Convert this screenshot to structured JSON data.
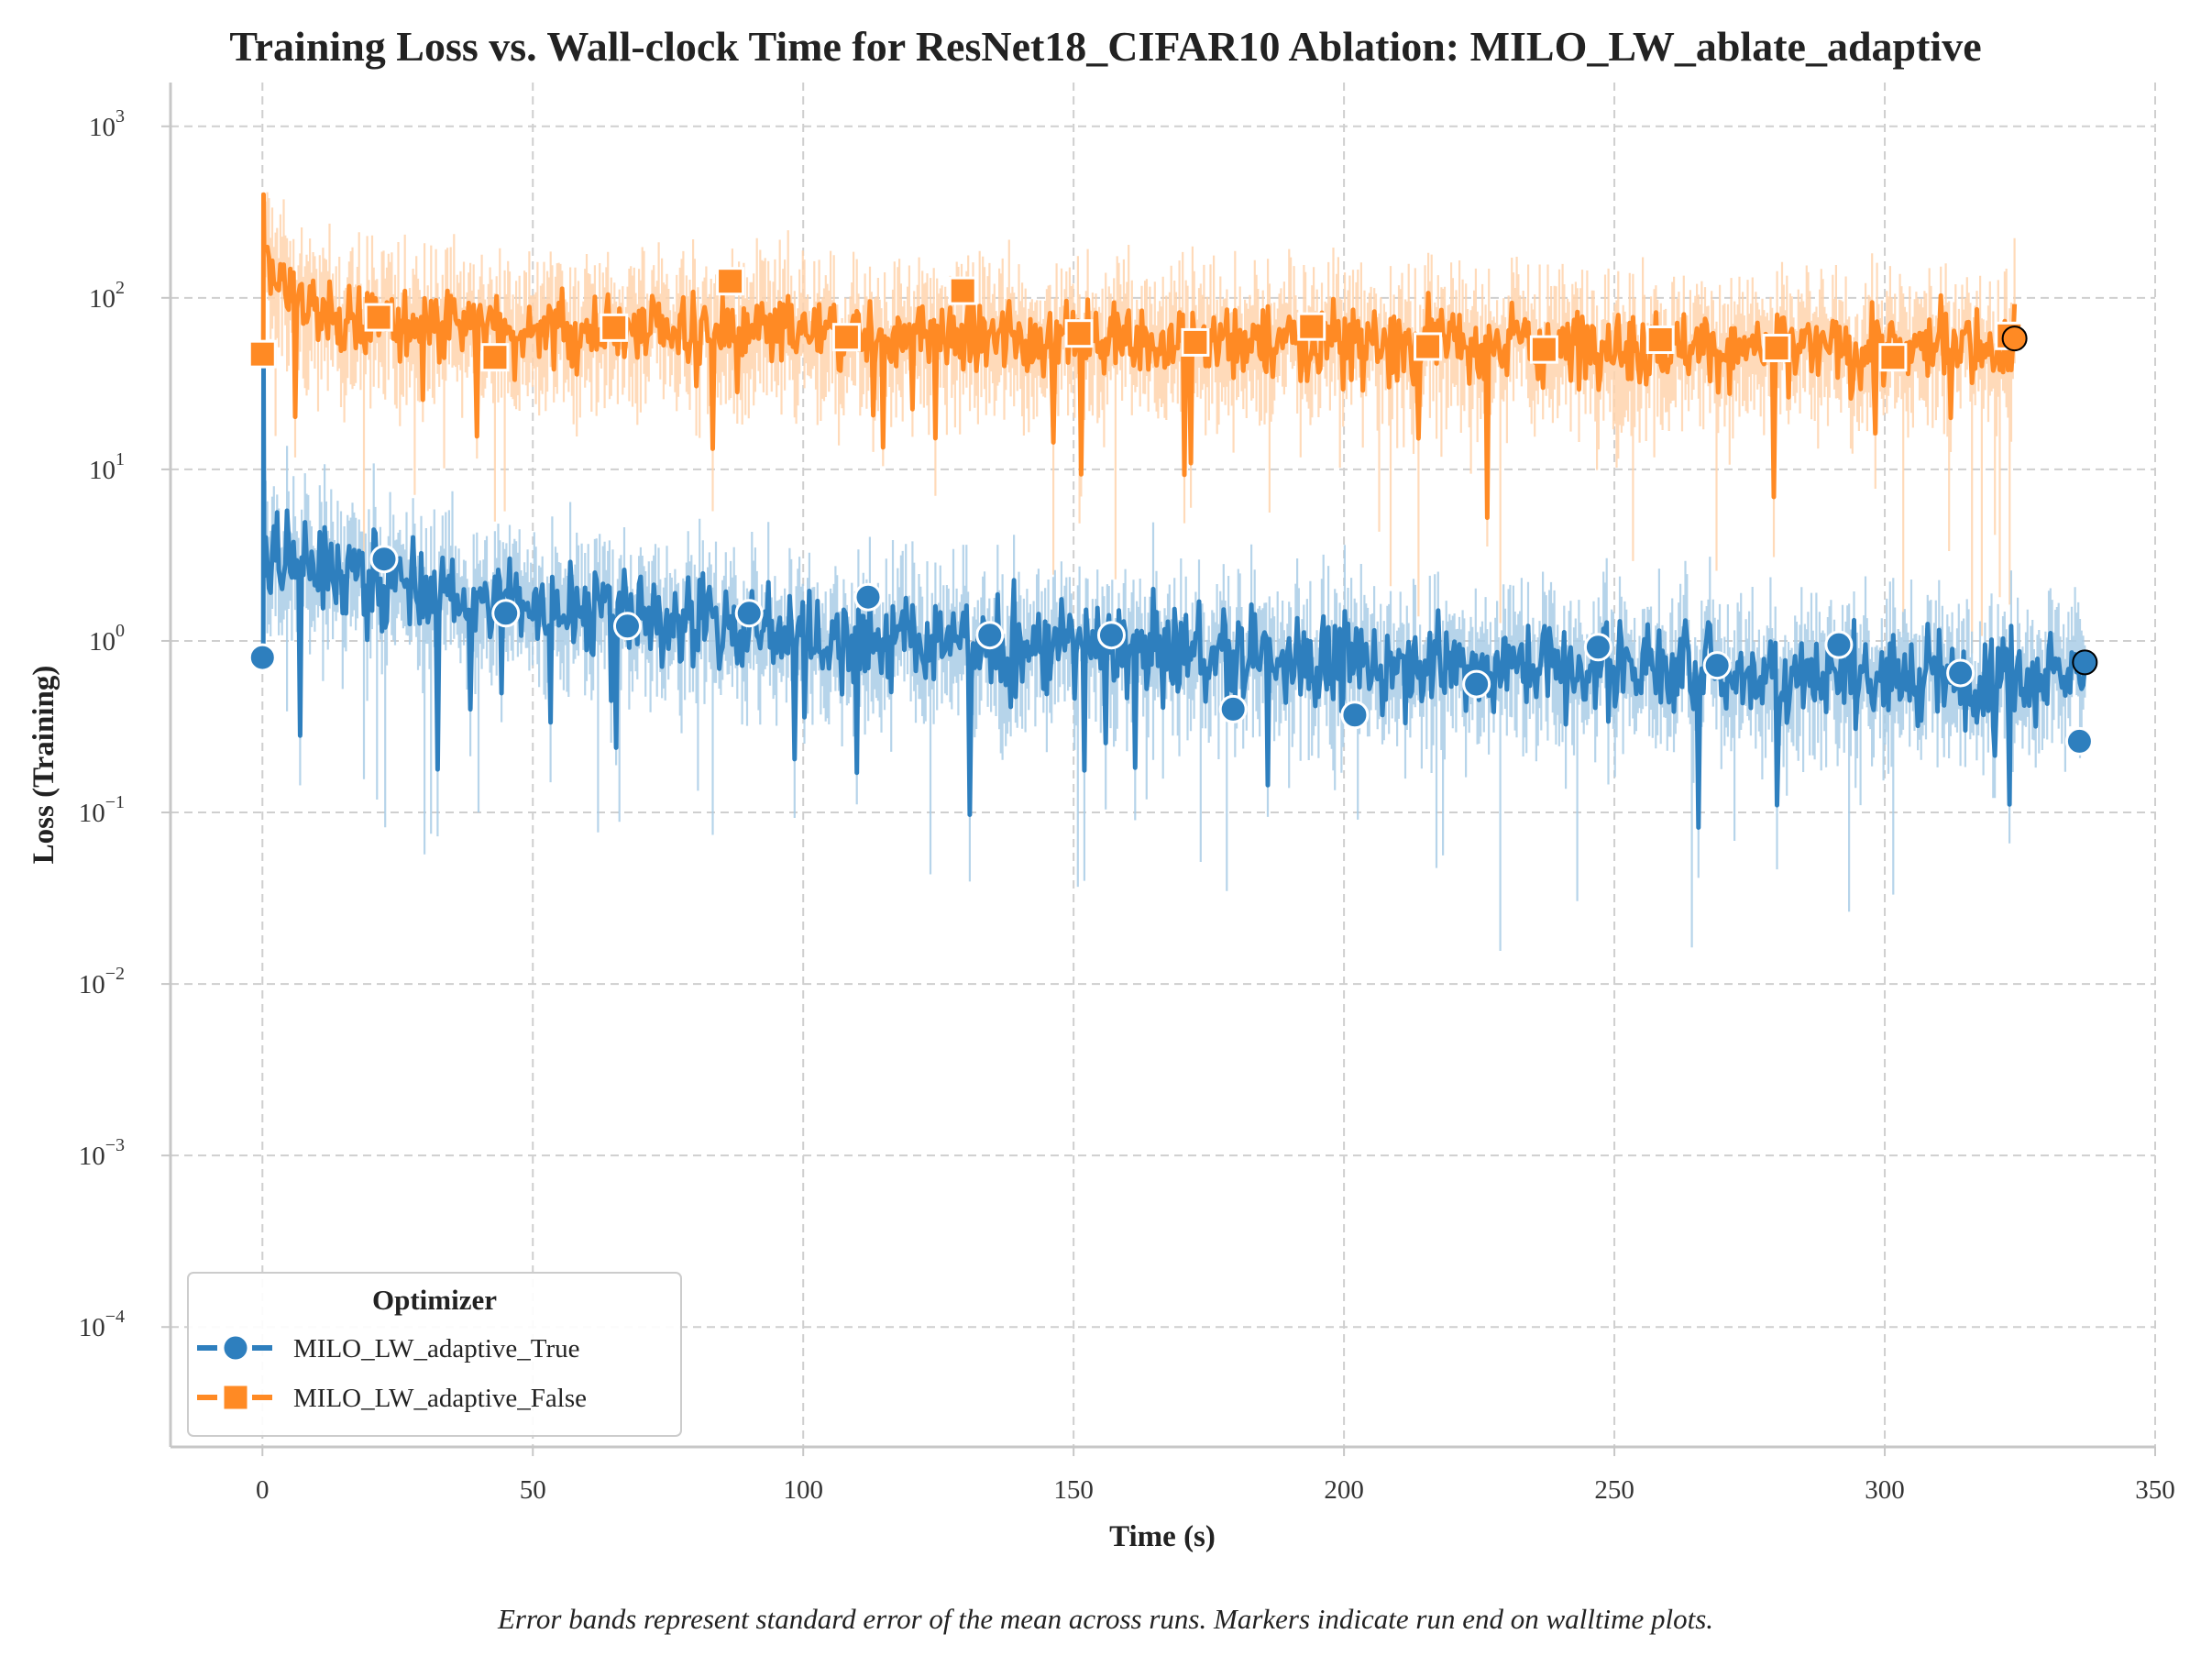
{
  "chart_data": {
    "type": "line",
    "title": "Training Loss vs. Wall-clock Time for ResNet18_CIFAR10 Ablation: MILO_LW_ablate_adaptive",
    "xlabel": "Time (s)",
    "ylabel": "Loss (Training)",
    "footnote": "Error bands represent standard error of the mean across runs. Markers indicate run end on walltime plots.",
    "xlim": [
      -17,
      350
    ],
    "ylim": [
      2e-05,
      1800
    ],
    "yscale": "log",
    "grid": true,
    "x_ticks": [
      {
        "value": 0,
        "label": "0"
      },
      {
        "value": 50,
        "label": "50"
      },
      {
        "value": 100,
        "label": "100"
      },
      {
        "value": 150,
        "label": "150"
      },
      {
        "value": 200,
        "label": "200"
      },
      {
        "value": 250,
        "label": "250"
      },
      {
        "value": 300,
        "label": "300"
      },
      {
        "value": 350,
        "label": "350"
      }
    ],
    "y_ticks": [
      {
        "value": 0.0001,
        "base": "10",
        "exp": "−4"
      },
      {
        "value": 0.001,
        "base": "10",
        "exp": "−3"
      },
      {
        "value": 0.01,
        "base": "10",
        "exp": "−2"
      },
      {
        "value": 0.1,
        "base": "10",
        "exp": "−1"
      },
      {
        "value": 1,
        "base": "10",
        "exp": "0"
      },
      {
        "value": 10,
        "base": "10",
        "exp": "1"
      },
      {
        "value": 100,
        "base": "10",
        "exp": "2"
      },
      {
        "value": 1000,
        "base": "10",
        "exp": "3"
      }
    ],
    "legend": {
      "title": "Optimizer",
      "position": "lower-left"
    },
    "series": [
      {
        "name": "MILO_LW_adaptive_True",
        "color": "#2e7fbe",
        "band_color": "#a9cce6",
        "marker": "circle",
        "end_time": 337,
        "end_value": 0.75,
        "markers": [
          {
            "x": 0,
            "y": 0.8,
            "style": "filled"
          },
          {
            "x": 22.5,
            "y": 3.0,
            "style": "hollow"
          },
          {
            "x": 45,
            "y": 1.45,
            "style": "hollow"
          },
          {
            "x": 67.5,
            "y": 1.22,
            "style": "hollow"
          },
          {
            "x": 90,
            "y": 1.45,
            "style": "hollow"
          },
          {
            "x": 112,
            "y": 1.8,
            "style": "filled"
          },
          {
            "x": 134.5,
            "y": 1.08,
            "style": "hollow"
          },
          {
            "x": 157,
            "y": 1.08,
            "style": "hollow"
          },
          {
            "x": 179.5,
            "y": 0.4,
            "style": "hollow"
          },
          {
            "x": 202,
            "y": 0.37,
            "style": "hollow"
          },
          {
            "x": 224.5,
            "y": 0.56,
            "style": "hollow"
          },
          {
            "x": 247,
            "y": 0.92,
            "style": "hollow"
          },
          {
            "x": 269,
            "y": 0.72,
            "style": "hollow"
          },
          {
            "x": 291.5,
            "y": 0.95,
            "style": "hollow"
          },
          {
            "x": 314,
            "y": 0.65,
            "style": "hollow"
          },
          {
            "x": 336,
            "y": 0.26,
            "style": "filled"
          }
        ],
        "trend": [
          {
            "x": 0.5,
            "y": 3.5
          },
          {
            "x": 10,
            "y": 2.7
          },
          {
            "x": 25,
            "y": 2.0
          },
          {
            "x": 50,
            "y": 1.6
          },
          {
            "x": 100,
            "y": 1.1
          },
          {
            "x": 150,
            "y": 0.9
          },
          {
            "x": 200,
            "y": 0.75
          },
          {
            "x": 250,
            "y": 0.7
          },
          {
            "x": 300,
            "y": 0.65
          },
          {
            "x": 337,
            "y": 0.65
          }
        ]
      },
      {
        "name": "MILO_LW_adaptive_False",
        "color": "#ff8a24",
        "band_color": "#ffd3ad",
        "marker": "square",
        "end_time": 324,
        "end_value": 58,
        "markers": [
          {
            "x": 0,
            "y": 47,
            "style": "filled"
          },
          {
            "x": 21.5,
            "y": 77,
            "style": "hollow"
          },
          {
            "x": 43,
            "y": 45,
            "style": "hollow"
          },
          {
            "x": 65,
            "y": 67,
            "style": "hollow"
          },
          {
            "x": 86.5,
            "y": 125,
            "style": "filled"
          },
          {
            "x": 108,
            "y": 59,
            "style": "hollow"
          },
          {
            "x": 129.5,
            "y": 110,
            "style": "filled"
          },
          {
            "x": 151,
            "y": 62,
            "style": "hollow"
          },
          {
            "x": 172.5,
            "y": 55,
            "style": "hollow"
          },
          {
            "x": 194,
            "y": 68,
            "style": "hollow"
          },
          {
            "x": 215.5,
            "y": 52,
            "style": "hollow"
          },
          {
            "x": 237,
            "y": 50,
            "style": "hollow"
          },
          {
            "x": 258.5,
            "y": 57,
            "style": "hollow"
          },
          {
            "x": 280,
            "y": 51,
            "style": "hollow"
          },
          {
            "x": 301.5,
            "y": 45,
            "style": "hollow"
          },
          {
            "x": 323,
            "y": 60,
            "style": "filled"
          }
        ],
        "trend": [
          {
            "x": 0.5,
            "y": 150
          },
          {
            "x": 10,
            "y": 75
          },
          {
            "x": 50,
            "y": 68
          },
          {
            "x": 100,
            "y": 62
          },
          {
            "x": 150,
            "y": 58
          },
          {
            "x": 200,
            "y": 55
          },
          {
            "x": 250,
            "y": 52
          },
          {
            "x": 300,
            "y": 50
          },
          {
            "x": 324,
            "y": 52
          }
        ]
      }
    ]
  }
}
